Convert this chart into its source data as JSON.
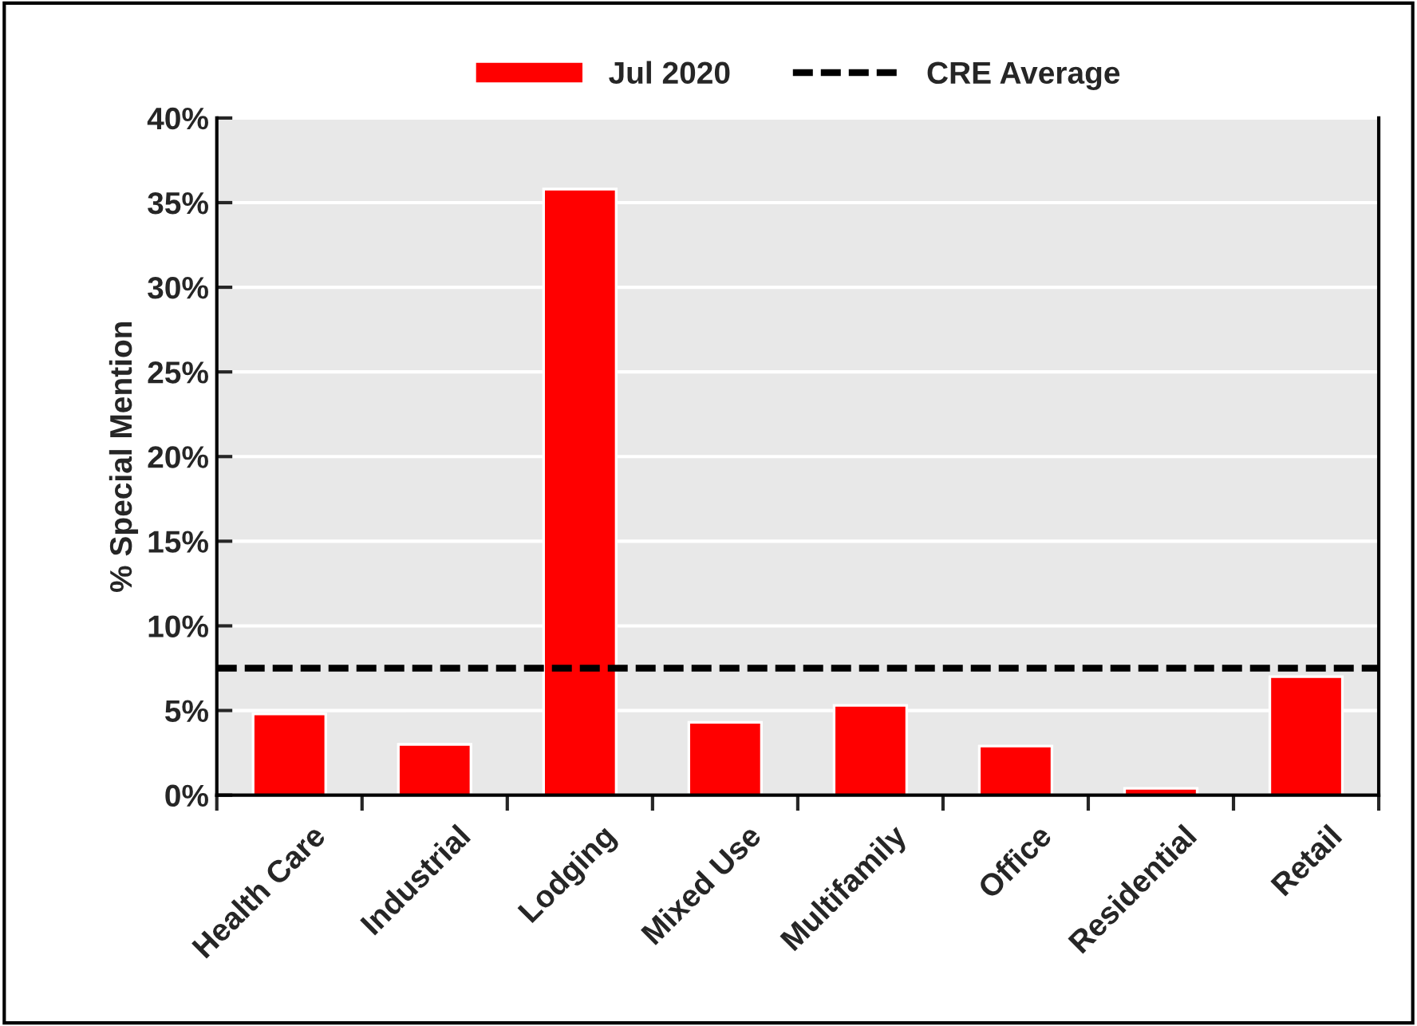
{
  "chart_data": {
    "type": "bar",
    "ylabel": "% Special Mention",
    "categories": [
      "Health Care",
      "Industrial",
      "Lodging",
      "Mixed Use",
      "Multifamily",
      "Office",
      "Residential",
      "Retail"
    ],
    "series": [
      {
        "name": "Jul 2020",
        "color": "#ff0000",
        "values": [
          4.8,
          3.0,
          35.8,
          4.3,
          5.3,
          2.9,
          0.4,
          7.0
        ]
      }
    ],
    "ref_lines": [
      {
        "axis": "y",
        "value": 7.5,
        "label": "CRE Average",
        "color": "#000000",
        "line_style": "dashed"
      }
    ],
    "ylim": [
      0,
      40
    ],
    "yticks": [
      {
        "value": 0,
        "label": "0%"
      },
      {
        "value": 5,
        "label": "5%"
      },
      {
        "value": 10,
        "label": "10%"
      },
      {
        "value": 15,
        "label": "15%"
      },
      {
        "value": 20,
        "label": "20%"
      },
      {
        "value": 25,
        "label": "25%"
      },
      {
        "value": 30,
        "label": "30%"
      },
      {
        "value": 35,
        "label": "35%"
      },
      {
        "value": 40,
        "label": "40%"
      }
    ],
    "grid": "y",
    "legend": "top"
  }
}
